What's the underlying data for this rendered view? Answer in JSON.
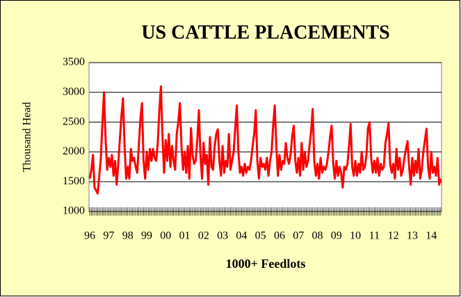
{
  "chart_data": {
    "type": "line",
    "title": "US CATTLE PLACEMENTS",
    "xlabel": "1000+ Feedlots",
    "ylabel": "Thousand Head",
    "categories": [
      "96",
      null,
      null,
      null,
      null,
      null,
      null,
      null,
      null,
      null,
      null,
      null,
      "97",
      null,
      null,
      null,
      null,
      null,
      null,
      null,
      null,
      null,
      null,
      null,
      "98",
      null,
      null,
      null,
      null,
      null,
      null,
      null,
      null,
      null,
      null,
      null,
      "99",
      null,
      null,
      null,
      null,
      null,
      null,
      null,
      null,
      null,
      null,
      null,
      "00",
      null,
      null,
      null,
      null,
      null,
      null,
      null,
      null,
      null,
      null,
      null,
      "01",
      null,
      null,
      null,
      null,
      null,
      null,
      null,
      null,
      null,
      null,
      null,
      "02",
      null,
      null,
      null,
      null,
      null,
      null,
      null,
      null,
      null,
      null,
      null,
      "03",
      null,
      null,
      null,
      null,
      null,
      null,
      null,
      null,
      null,
      null,
      null,
      "04",
      null,
      null,
      null,
      null,
      null,
      null,
      null,
      null,
      null,
      null,
      null,
      "05",
      null,
      null,
      null,
      null,
      null,
      null,
      null,
      null,
      null,
      null,
      null,
      "06",
      null,
      null,
      null,
      null,
      null,
      null,
      null,
      null,
      null,
      null,
      null,
      "07",
      null,
      null,
      null,
      null,
      null,
      null,
      null,
      null,
      null,
      null,
      null,
      "08",
      null,
      null,
      null,
      null,
      null,
      null,
      null,
      null,
      null,
      null,
      null,
      "09",
      null,
      null,
      null,
      null,
      null,
      null,
      null,
      null,
      null,
      null,
      null,
      "10",
      null,
      null,
      null,
      null,
      null,
      null,
      null,
      null,
      null,
      null,
      null,
      "11",
      null,
      null,
      null,
      null,
      null,
      null,
      null,
      null,
      null,
      null,
      null,
      "12",
      null,
      null,
      null,
      null,
      null,
      null,
      null,
      null,
      null,
      null,
      null,
      "13",
      null,
      null,
      null,
      null,
      null,
      null,
      null,
      null,
      null,
      null,
      null,
      "14",
      null,
      null,
      null,
      null,
      null,
      null
    ],
    "series": [
      {
        "name": "Placements",
        "color": "#ff0000",
        "values": [
          1550,
          1700,
          1950,
          1400,
          1350,
          1300,
          1600,
          1900,
          2500,
          3000,
          2200,
          1700,
          1900,
          1750,
          1950,
          1600,
          1850,
          1450,
          1800,
          2200,
          2600,
          2900,
          2100,
          1550,
          1750,
          1550,
          2050,
          1850,
          1900,
          1750,
          1650,
          2100,
          2550,
          2820,
          1850,
          1550,
          2000,
          1700,
          2050,
          1850,
          2050,
          1900,
          1850,
          2150,
          2700,
          3100,
          2250,
          1650,
          2200,
          1850,
          2300,
          1750,
          2100,
          1850,
          1700,
          2300,
          2500,
          2820,
          2100,
          1700,
          2000,
          1650,
          2100,
          1550,
          2400,
          1950,
          1800,
          1850,
          2200,
          2700,
          1950,
          1550,
          2150,
          1800,
          1950,
          1450,
          2250,
          1750,
          1700,
          2100,
          2300,
          2380,
          1850,
          1600,
          2100,
          1650,
          1850,
          1750,
          2300,
          1700,
          1850,
          2000,
          2400,
          2780,
          2000,
          1650,
          1750,
          1600,
          1800,
          1650,
          1750,
          1700,
          1850,
          2100,
          2300,
          2700,
          1850,
          1550,
          1900,
          1750,
          1800,
          1700,
          1900,
          1600,
          1850,
          2000,
          2450,
          2780,
          2100,
          1600,
          1950,
          1700,
          1850,
          1800,
          2150,
          1900,
          1800,
          1950,
          2250,
          2440,
          1850,
          1650,
          1900,
          1600,
          2150,
          1700,
          2000,
          1750,
          1850,
          2100,
          2350,
          2720,
          1850,
          1600,
          1800,
          1550,
          1900,
          1650,
          1750,
          1700,
          1800,
          2000,
          2250,
          2440,
          1800,
          1550,
          1850,
          1600,
          1750,
          1650,
          1400,
          1750,
          1700,
          1800,
          2100,
          2470,
          1750,
          1600,
          1850,
          1600,
          1800,
          1650,
          2000,
          1700,
          1750,
          1950,
          2400,
          2500,
          1900,
          1650,
          1850,
          1650,
          1900,
          1600,
          1800,
          1700,
          1750,
          2150,
          2300,
          2480,
          1800,
          1650,
          1800,
          1550,
          2050,
          1700,
          1900,
          1600,
          1700,
          1900,
          2050,
          2180,
          1750,
          1450,
          1900,
          1600,
          1850,
          1650,
          2050,
          1550,
          1700,
          2000,
          2200,
          2390,
          1750,
          1550,
          2000,
          1650,
          1750,
          1600,
          1900,
          1450,
          1550
        ]
      }
    ],
    "ylim": [
      1000,
      3500
    ],
    "yticks": [
      1000,
      1500,
      2000,
      2500,
      3000,
      3500
    ],
    "grid": true
  }
}
